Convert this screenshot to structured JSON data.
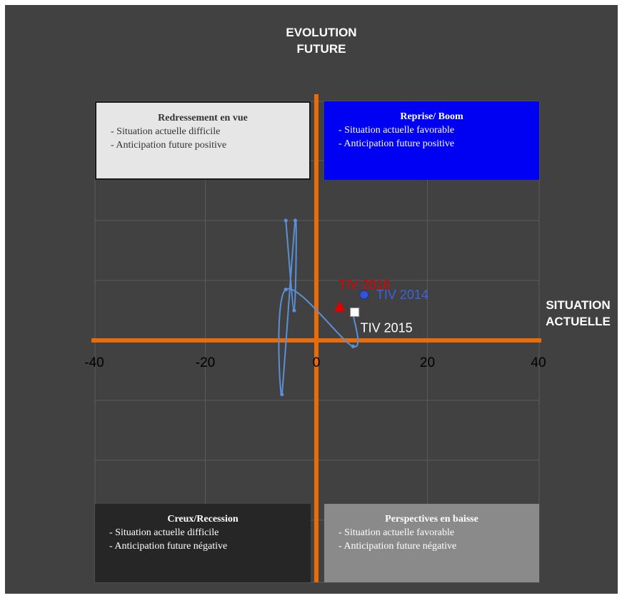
{
  "chart_data": {
    "type": "scatter",
    "xlabel_lines": [
      "SITUATION",
      "ACTUELLE"
    ],
    "ylabel_lines": [
      "EVOLUTION",
      "FUTURE"
    ],
    "xlim": [
      -40,
      40
    ],
    "ylim": [
      -40,
      40
    ],
    "x_ticks": [
      -40,
      -20,
      0,
      20,
      40
    ],
    "grid": true,
    "series": [
      {
        "type": "line",
        "values": [
          {
            "x": -5.5,
            "y": 20
          },
          {
            "x": -4,
            "y": 5
          },
          {
            "x": -3.8,
            "y": 20
          },
          {
            "x": -6.2,
            "y": -9
          },
          {
            "x": -5.5,
            "y": 8.5
          },
          {
            "x": 6.6,
            "y": -1
          },
          {
            "x": 6.6,
            "y": 4.5
          }
        ]
      }
    ],
    "highlights": [
      {
        "label": "TIV 2014",
        "x": 8.6,
        "y": 7.6,
        "marker": "circle",
        "color": "#2f55d8"
      },
      {
        "label": "TIV 2015",
        "x": 6.9,
        "y": 4.7,
        "marker": "square",
        "color": "#ffffff"
      },
      {
        "label": "TIV 2016",
        "x": 4.2,
        "y": 5.5,
        "marker": "triangle",
        "color": "#e00000"
      }
    ]
  },
  "quadrants": {
    "top_left": {
      "title": "Redressement en vue",
      "lines": [
        "- Situation actuelle difficile",
        "-  Anticipation future positive"
      ]
    },
    "top_right": {
      "title": "Reprise/ Boom",
      "lines": [
        "- Situation actuelle favorable",
        "-  Anticipation future positive"
      ]
    },
    "bottom_left": {
      "title": "Creux/Recession",
      "lines": [
        "-  Situation actuelle difficile",
        "-  Anticipation future négative"
      ]
    },
    "bottom_right": {
      "title": "Perspectives en baisse",
      "lines": [
        "- Situation actuelle favorable",
        "-  Anticipation future négative"
      ]
    }
  },
  "colors": {
    "background": "#414141",
    "axis": "#e86c0a",
    "trajectory": "#5b8fd6",
    "grid": "#5a5a5a"
  }
}
